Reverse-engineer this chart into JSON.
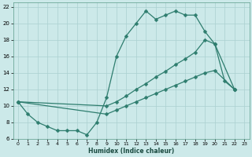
{
  "xlabel": "Humidex (Indice chaleur)",
  "bg_color": "#cce9e9",
  "grid_color": "#aad0d0",
  "line_color": "#2e7d6e",
  "xlim": [
    -0.5,
    23.5
  ],
  "ylim": [
    6,
    22.5
  ],
  "xticks": [
    0,
    1,
    2,
    3,
    4,
    5,
    6,
    7,
    8,
    9,
    10,
    11,
    12,
    13,
    14,
    15,
    16,
    17,
    18,
    19,
    20,
    21,
    22,
    23
  ],
  "yticks": [
    6,
    8,
    10,
    12,
    14,
    16,
    18,
    20,
    22
  ],
  "curve_upper_x": [
    0,
    1,
    2,
    3,
    4,
    5,
    6,
    7,
    8,
    9,
    10,
    11,
    12,
    13,
    14,
    15,
    16,
    17,
    18,
    19,
    20,
    21,
    22
  ],
  "curve_upper_y": [
    10.5,
    9.0,
    8.0,
    7.5,
    7.0,
    7.0,
    7.0,
    6.5,
    8.0,
    11.0,
    16.0,
    18.5,
    20.0,
    21.5,
    20.5,
    21.0,
    21.5,
    21.0,
    21.0,
    19.0,
    17.5,
    13.0,
    12.0
  ],
  "curve_mid_x": [
    0,
    9,
    10,
    11,
    12,
    13,
    14,
    15,
    16,
    17,
    18,
    19,
    20,
    22
  ],
  "curve_mid_y": [
    10.5,
    10.0,
    10.5,
    11.2,
    12.0,
    12.7,
    13.5,
    14.2,
    15.0,
    15.7,
    16.5,
    18.0,
    17.5,
    12.0
  ],
  "curve_low_x": [
    0,
    9,
    10,
    11,
    12,
    13,
    14,
    15,
    16,
    17,
    18,
    19,
    20,
    22
  ],
  "curve_low_y": [
    10.5,
    9.0,
    9.5,
    10.0,
    10.5,
    11.0,
    11.5,
    12.0,
    12.5,
    13.0,
    13.5,
    14.0,
    14.3,
    12.0
  ]
}
